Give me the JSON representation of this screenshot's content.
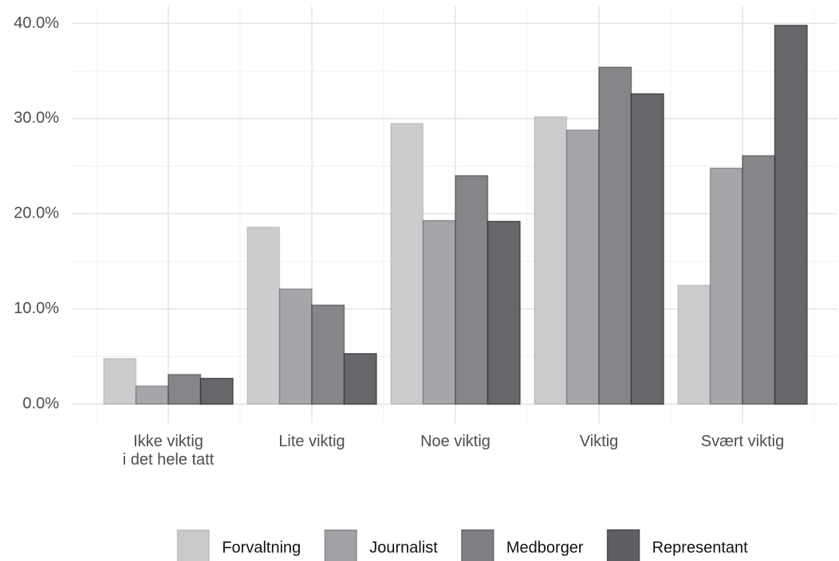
{
  "chart_data": {
    "type": "bar",
    "categories": [
      "Ikke viktig\ni det hele tatt",
      "Lite viktig",
      "Noe viktig",
      "Viktig",
      "Svært viktig"
    ],
    "series": [
      {
        "name": "Forvaltning",
        "color": "#c8c9cb",
        "values": [
          4.8,
          18.6,
          29.5,
          30.2,
          12.5
        ]
      },
      {
        "name": "Journalist",
        "color": "#a0a1a4",
        "values": [
          1.9,
          12.1,
          19.3,
          28.8,
          24.8
        ]
      },
      {
        "name": "Medborger",
        "color": "#7f8084",
        "values": [
          3.1,
          10.4,
          24.0,
          35.4,
          26.1
        ]
      },
      {
        "name": "Representant",
        "color": "#5e5f62",
        "values": [
          2.7,
          5.3,
          19.2,
          32.6,
          39.8
        ]
      }
    ],
    "ylim": [
      -2,
      41.8
    ],
    "yticks": [
      {
        "value": 0,
        "label": "0.0%"
      },
      {
        "value": 10,
        "label": "10.0%"
      },
      {
        "value": 20,
        "label": "20.0%"
      },
      {
        "value": 30,
        "label": "30.0%"
      },
      {
        "value": 40,
        "label": "40.0%"
      }
    ],
    "grid": true,
    "legend": "bottom"
  }
}
